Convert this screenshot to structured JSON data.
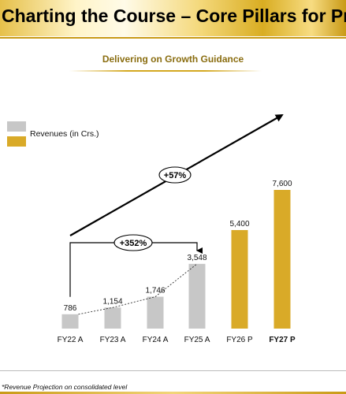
{
  "header": {
    "title": "Charting the Course – Core Pillars for Progre",
    "subtitle": "Delivering on Growth Guidance"
  },
  "legend": {
    "actual_label": "",
    "projected_label": "Revenues (in Crs.)"
  },
  "footnote": "*Revenue Projection on consolidated level",
  "colors": {
    "actual": "#c7c7c7",
    "projected": "#d9aa28",
    "title_gold": "#c99a16",
    "subtitle_text": "#8a6d10"
  },
  "chart_data": {
    "type": "bar",
    "title": "Delivering on Growth Guidance",
    "categories": [
      "FY22 A",
      "FY23 A",
      "FY24 A",
      "FY25 A",
      "FY26 P",
      "FY27 P"
    ],
    "values": [
      786,
      1154,
      1746,
      3548,
      5400,
      7600
    ],
    "value_labels": [
      "786",
      "1,154",
      "1,746",
      "3,548",
      "5,400",
      "7,600"
    ],
    "kind": [
      "actual",
      "actual",
      "actual",
      "actual",
      "projected",
      "projected"
    ],
    "bold_category": "FY27 P",
    "series": [
      {
        "name": "Revenues (in Crs.)",
        "values": [
          786,
          1154,
          1746,
          3548,
          5400,
          7600
        ]
      }
    ],
    "ylim": [
      0,
      7600
    ],
    "xlabel": "",
    "ylabel": "",
    "annotations": [
      "+57%",
      "+352%"
    ],
    "grid": false,
    "legend_position": "left"
  }
}
